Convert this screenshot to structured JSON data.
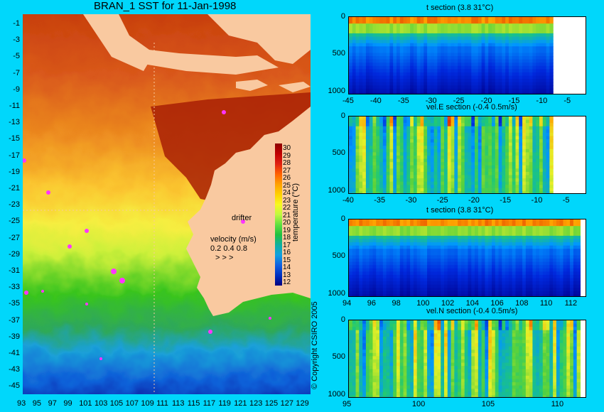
{
  "map": {
    "title": "BRAN_1 SST for 11-Jan-1998",
    "lat_labels": [
      "-1",
      "-3",
      "-5",
      "-7",
      "-9",
      "-11",
      "-13",
      "-15",
      "-17",
      "-19",
      "-21",
      "-23",
      "-25",
      "-27",
      "-29",
      "-31",
      "-33",
      "-35",
      "-37",
      "-39",
      "-41",
      "-43",
      "-45"
    ],
    "lon_labels": [
      "93",
      "95",
      "97",
      "99",
      "101",
      "103",
      "105",
      "107",
      "109",
      "111",
      "113",
      "115",
      "117",
      "119",
      "121",
      "123",
      "125",
      "127",
      "129"
    ],
    "drifter_label": "drifter",
    "velocity_label": "velocity (m/s)",
    "velocity_scale": "0.2 0.4 0.8",
    "velocity_arrows": "> > >",
    "colorbar": {
      "title": "temperature (°C)",
      "ticks": [
        "30",
        "29",
        "28",
        "27",
        "26",
        "25",
        "24",
        "23",
        "22",
        "21",
        "20",
        "19",
        "18",
        "17",
        "16",
        "15",
        "14",
        "13",
        "12"
      ]
    },
    "copyright": "© Copyright CSIRO 2005"
  },
  "sections": [
    {
      "title": "t section (3.8      31°C)",
      "y_ticks": [
        "0",
        "500",
        "1000"
      ],
      "x_ticks": [
        "-45",
        "-40",
        "-35",
        "-30",
        "-25",
        "-20",
        "-15",
        "-10",
        "-5"
      ],
      "kind": "temp-lat"
    },
    {
      "title": "vel.E section (-0.4      0.5m/s)",
      "y_ticks": [
        "0",
        "500",
        "1000"
      ],
      "x_ticks": [
        "-40",
        "-35",
        "-30",
        "-25",
        "-20",
        "-15",
        "-10",
        "-5"
      ],
      "kind": "vel-lat"
    },
    {
      "title": "t section (3.8      31°C)",
      "y_ticks": [
        "0",
        "500",
        "1000"
      ],
      "x_ticks": [
        "94",
        "96",
        "98",
        "100",
        "102",
        "104",
        "106",
        "108",
        "110",
        "112"
      ],
      "kind": "temp-lon"
    },
    {
      "title": "vel.N section (-0.4      0.5m/s)",
      "y_ticks": [
        "0",
        "500",
        "1000"
      ],
      "x_ticks": [
        "95",
        "100",
        "105",
        "110"
      ],
      "kind": "vel-lon"
    }
  ],
  "colors": {
    "background": "#00d7fb",
    "land": "#f9c9a0"
  }
}
